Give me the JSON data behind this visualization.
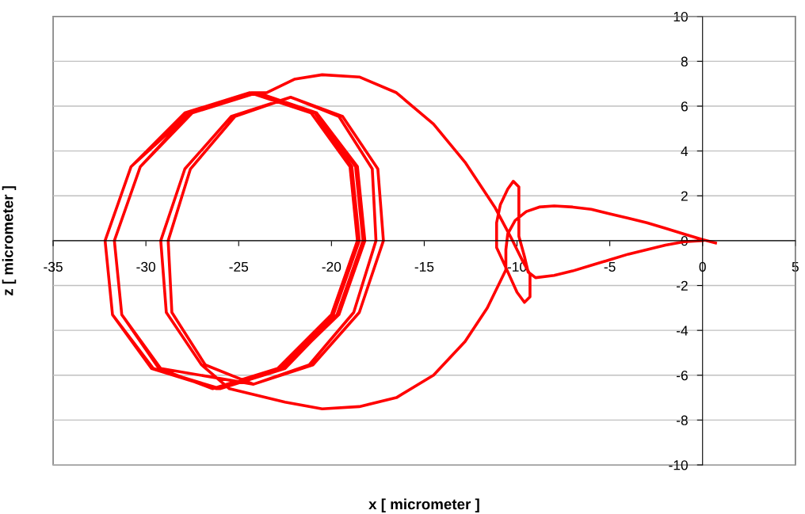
{
  "chart_data": {
    "type": "line",
    "xlabel": "x [ micrometer ]",
    "ylabel": "z [ micrometer ]",
    "xlim": [
      -35,
      5
    ],
    "ylim": [
      -10,
      10
    ],
    "xticks": [
      -35,
      -30,
      -25,
      -20,
      -15,
      -10,
      -5,
      0,
      5
    ],
    "yticks": [
      -10,
      -8,
      -6,
      -4,
      -2,
      0,
      2,
      4,
      6,
      8,
      10
    ],
    "grid": "y",
    "marker": "none",
    "line_style": "solid",
    "series": [
      {
        "color": "#ff0000",
        "x": [
          0.7,
          0,
          -1,
          -2,
          -3,
          -4,
          -5,
          -6,
          -7,
          -8,
          -8.8,
          -9.5,
          -10.1,
          -10.5,
          -10.6,
          -10.6,
          -11.6,
          -12.8,
          -14.5,
          -16.5,
          -18.5,
          -20.5,
          -22.5,
          -24,
          -25.5,
          -27.0,
          -28.9,
          -29.2,
          -27.9,
          -25.4,
          -22.2,
          -19.4,
          -17.5,
          -17.2,
          -18.5,
          -21.0,
          -24.2,
          -26.8,
          -28.6,
          -28.8,
          -27.6,
          -25.2,
          -22.2,
          -19.6,
          -17.8,
          -17.6,
          -18.8,
          -21.2,
          -24.2,
          -29.2,
          -31.3,
          -31.7,
          -30.3,
          -27.5,
          -24.0,
          -20.8,
          -18.7,
          -18.3,
          -19.7,
          -22.5,
          -26.0,
          -29.6,
          -31.8,
          -32.2,
          -30.8,
          -27.8,
          -24.2,
          -20.8,
          -18.6,
          -18.2,
          -19.6,
          -22.6,
          -26.2,
          -29.7,
          -31.8,
          -32.2,
          -30.8,
          -27.9,
          -24.4,
          -21.1,
          -19.0,
          -18.6,
          -20.0,
          -22.9,
          -26.4,
          -29.3,
          -31.3,
          -31.7,
          -30.3,
          -27.6,
          -24.1,
          -20.9,
          -18.9,
          -18.5,
          -19.9,
          -22.7,
          -26.1,
          -29.6,
          -31.8,
          -32.2,
          -30.8,
          -27.6,
          -24.3,
          -23.5,
          -22,
          -20.5,
          -18.5,
          -16.5,
          -14.5,
          -12.8,
          -11.2,
          -10.3,
          -9.7,
          -9.3,
          -9.3,
          -9.6,
          -10.0,
          -10.6,
          -11.1,
          -11.1,
          -10.9,
          -10.5,
          -10.2,
          -9.9,
          -9.9,
          -9.9,
          -9.6,
          -9.4,
          -9,
          -8,
          -7,
          -6,
          -5,
          -4,
          -3,
          -2,
          -1,
          0
        ],
        "values": [
          -0.1,
          0.05,
          0.3,
          0.55,
          0.8,
          1.0,
          1.2,
          1.4,
          1.5,
          1.55,
          1.5,
          1.3,
          0.9,
          0.3,
          -0.4,
          -1.3,
          -3.0,
          -4.5,
          -6.0,
          -7.0,
          -7.4,
          -7.5,
          -7.2,
          -6.9,
          -6.6,
          -5.54,
          -3.2,
          0,
          3.2,
          5.54,
          6.4,
          5.54,
          3.2,
          0,
          -3.2,
          -5.54,
          -6.4,
          -5.54,
          -3.2,
          0,
          3.2,
          5.54,
          6.4,
          5.54,
          3.2,
          0,
          -3.2,
          -5.54,
          -6.4,
          -5.7,
          -3.3,
          0,
          3.3,
          5.7,
          6.6,
          5.7,
          3.3,
          0,
          -3.3,
          -5.7,
          -6.6,
          -5.7,
          -3.3,
          0,
          3.3,
          5.7,
          6.6,
          5.7,
          3.3,
          0,
          -3.3,
          -5.7,
          -6.6,
          -5.7,
          -3.3,
          0,
          3.3,
          5.7,
          6.6,
          5.7,
          3.3,
          0,
          -3.3,
          -5.7,
          -6.6,
          -5.7,
          -3.3,
          0,
          3.3,
          5.7,
          6.6,
          5.7,
          3.3,
          0,
          -3.3,
          -5.7,
          -6.6,
          -5.7,
          -3.3,
          0,
          3.3,
          5.7,
          6.6,
          6.6,
          7.2,
          7.4,
          7.3,
          6.6,
          5.2,
          3.5,
          1.5,
          0.1,
          -0.9,
          -1.5,
          -2.5,
          -2.75,
          -2.3,
          -1.2,
          -0.3,
          0.8,
          1.6,
          2.3,
          2.65,
          2.4,
          1.0,
          0.2,
          -0.7,
          -1.4,
          -1.65,
          -1.55,
          -1.35,
          -1.1,
          -0.85,
          -0.6,
          -0.4,
          -0.2,
          -0.05,
          0
        ]
      }
    ]
  }
}
